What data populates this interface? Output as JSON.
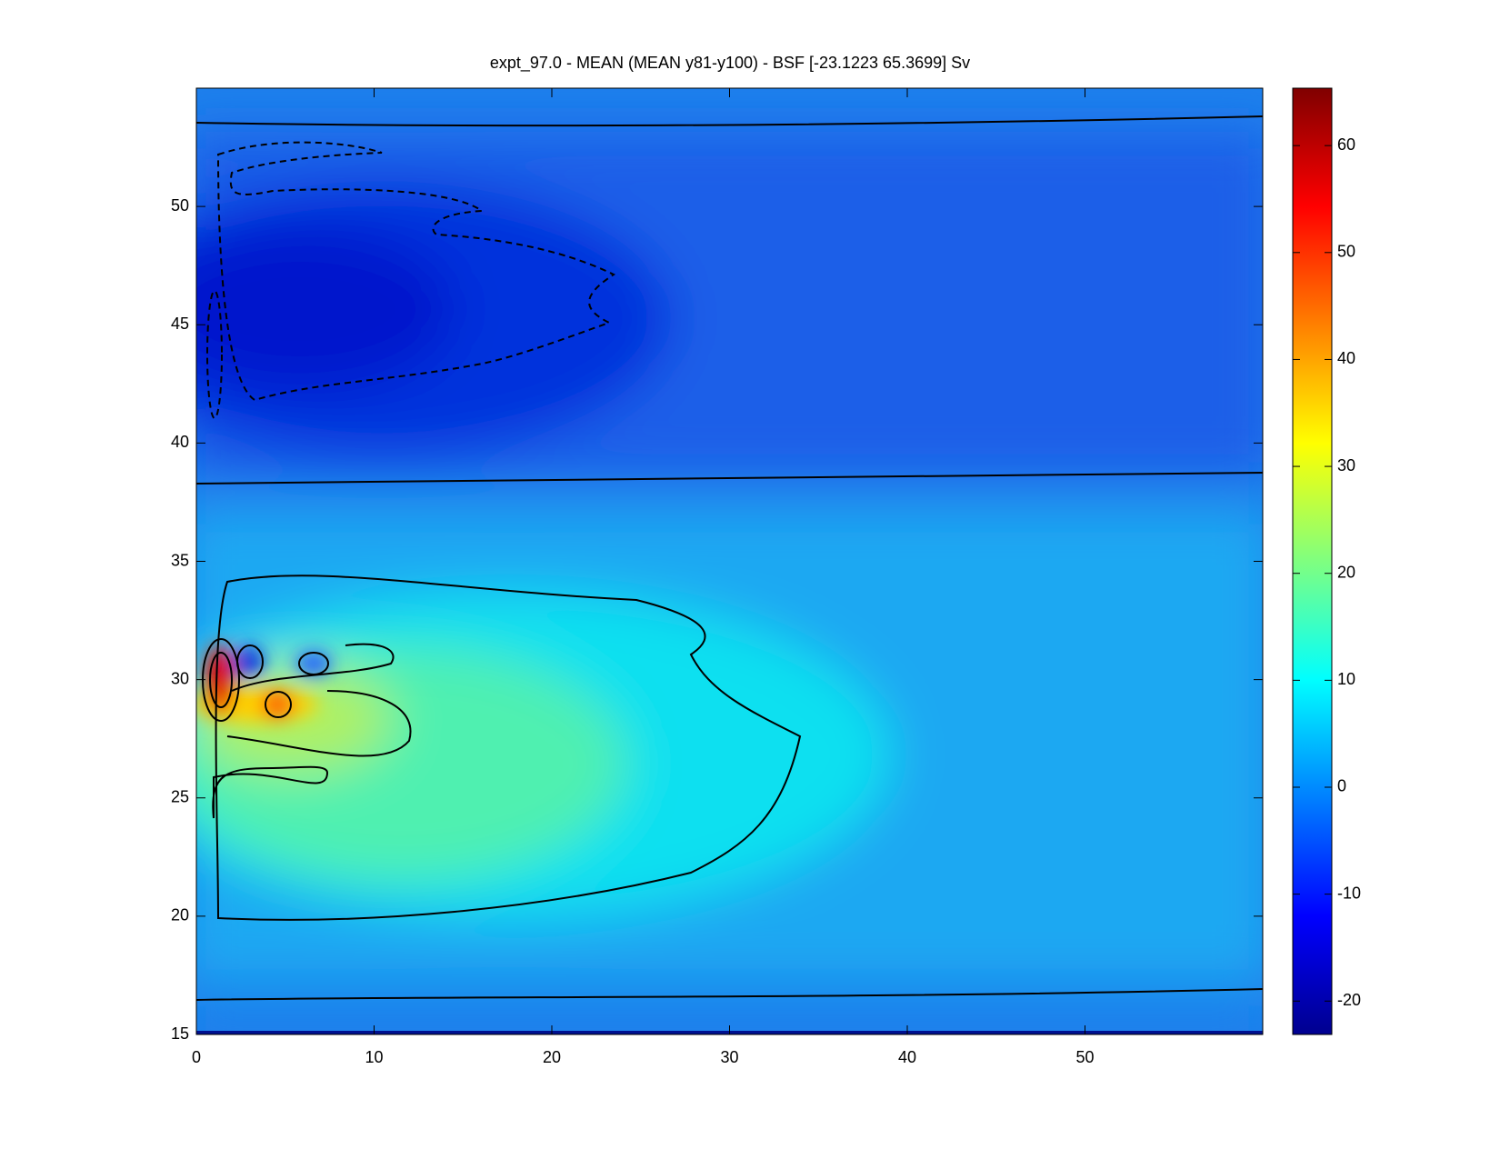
{
  "chart_data": {
    "type": "heatmap",
    "title": "expt_97.0 - MEAN (MEAN y81-y100) - BSF [-23.1223 65.3699] Sv",
    "xlim": [
      0,
      60
    ],
    "xticks": [
      0,
      10,
      20,
      30,
      40,
      50
    ],
    "ylim": [
      15,
      55
    ],
    "yticks": [
      15,
      20,
      25,
      30,
      35,
      40,
      45,
      50
    ],
    "colorbar": {
      "colormap": "jet",
      "clim": [
        -23.1223,
        65.3699
      ],
      "ticks": [
        -20,
        -10,
        0,
        10,
        20,
        30,
        40,
        50,
        60
      ]
    }
  }
}
